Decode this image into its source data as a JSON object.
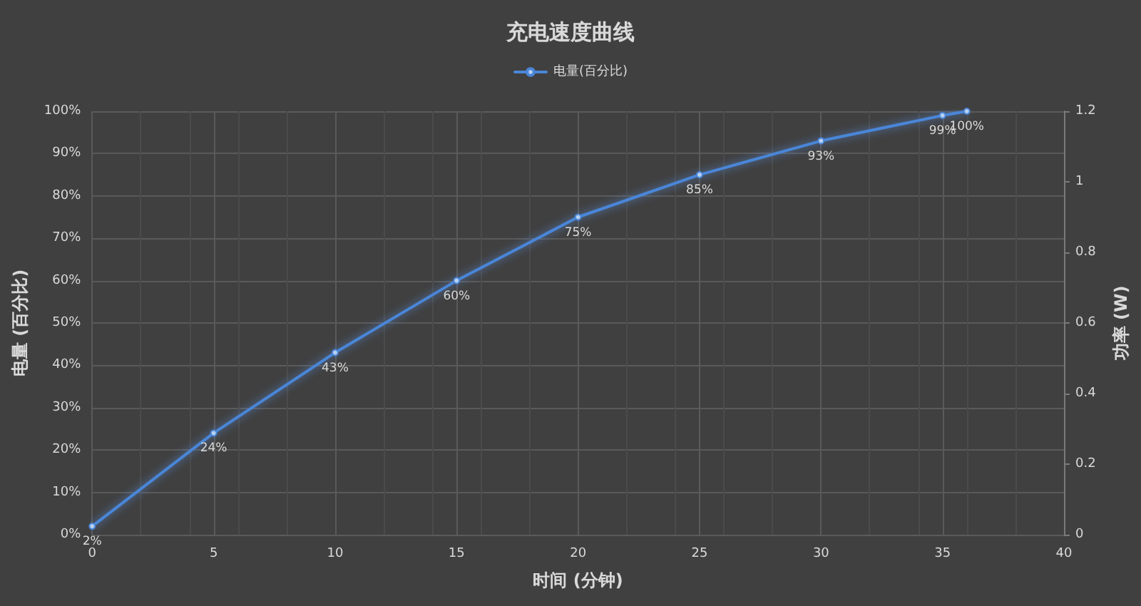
{
  "chart_data": {
    "type": "line",
    "title": "充电速度曲线",
    "xlabel": "时间 (分钟)",
    "ylabel": "电量 (百分比)",
    "y2label": "功率 (W)",
    "x": [
      0,
      5,
      10,
      15,
      20,
      25,
      30,
      35,
      36
    ],
    "series": [
      {
        "name": "电量(百分比)",
        "color": "#4a86d8",
        "values": [
          2,
          24,
          43,
          60,
          75,
          85,
          93,
          99,
          100
        ],
        "value_labels": [
          "2%",
          "24%",
          "43%",
          "60%",
          "75%",
          "85%",
          "93%",
          "99%",
          "100%"
        ]
      }
    ],
    "xlim": [
      0,
      40
    ],
    "xticks": [
      0,
      5,
      10,
      15,
      20,
      25,
      30,
      35,
      40
    ],
    "ylim": [
      0,
      100
    ],
    "yticks": [
      {
        "value": 0,
        "label": "0%"
      },
      {
        "value": 10,
        "label": "10%"
      },
      {
        "value": 20,
        "label": "20%"
      },
      {
        "value": 30,
        "label": "30%"
      },
      {
        "value": 40,
        "label": "40%"
      },
      {
        "value": 50,
        "label": "50%"
      },
      {
        "value": 60,
        "label": "60%"
      },
      {
        "value": 70,
        "label": "70%"
      },
      {
        "value": 80,
        "label": "80%"
      },
      {
        "value": 90,
        "label": "90%"
      },
      {
        "value": 100,
        "label": "100%"
      }
    ],
    "y2lim": [
      0,
      1.2
    ],
    "y2ticks": [
      0,
      0.2,
      0.4,
      0.6,
      0.8,
      1,
      1.2
    ],
    "grid": true,
    "legend": "top",
    "marker": "circle",
    "line_style": "solid"
  }
}
